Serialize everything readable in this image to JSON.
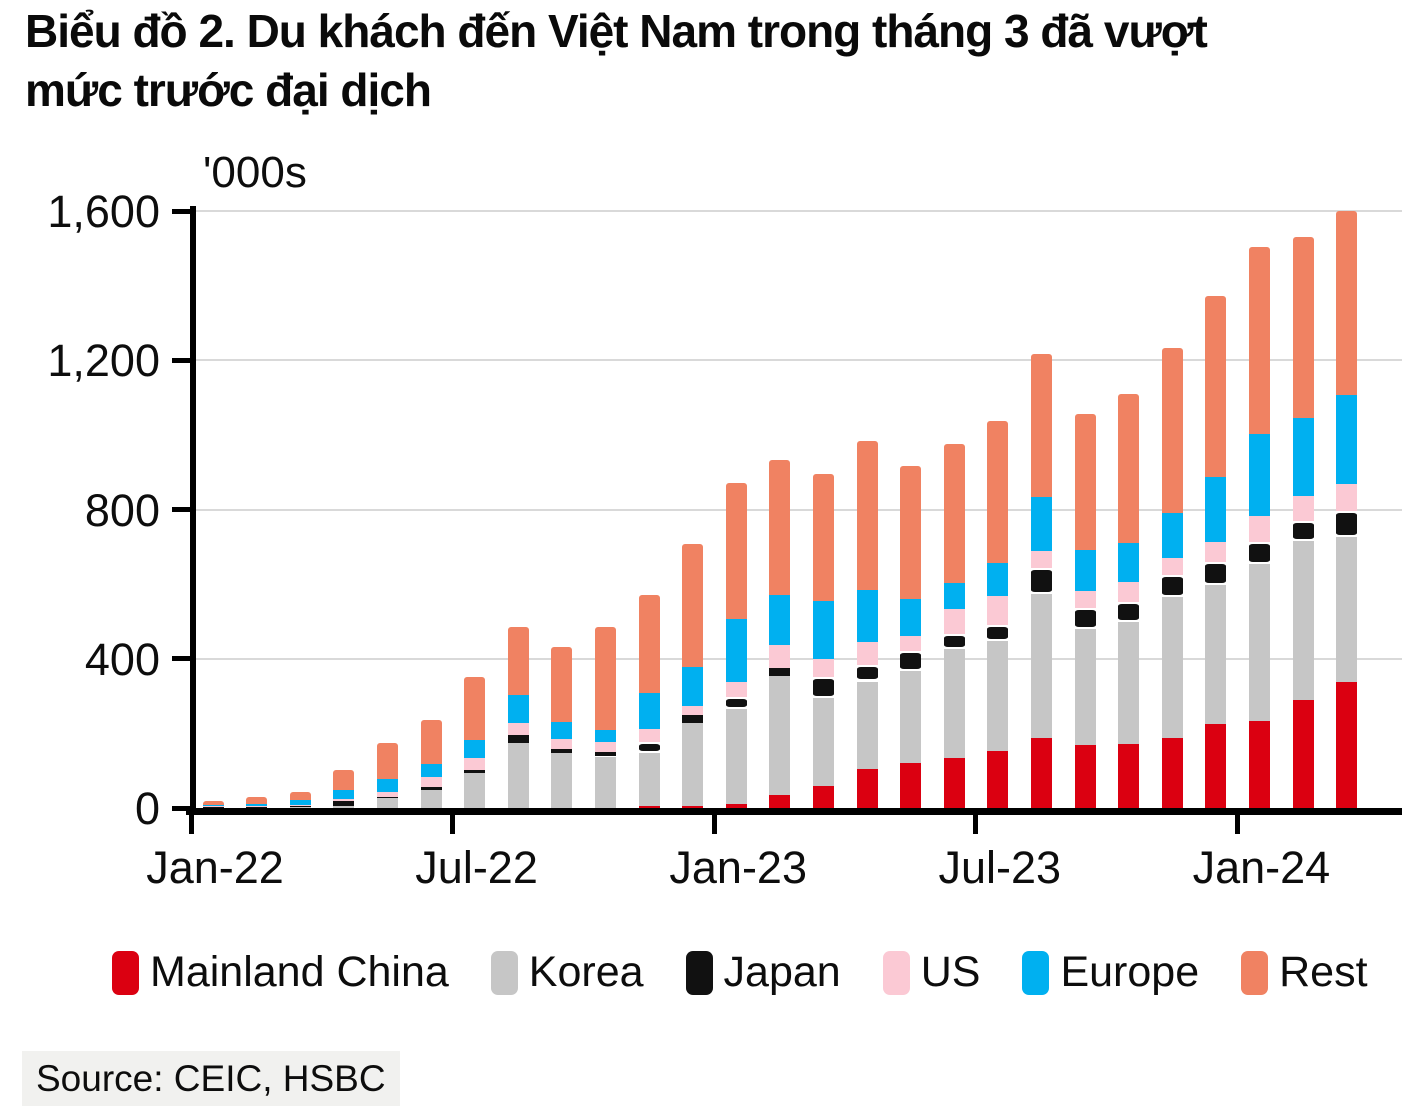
{
  "title": {
    "line1": "Biểu đồ 2. Du khách đến Việt Nam trong tháng 3 đã vượt",
    "line2": "mức trước đại dịch"
  },
  "chart": {
    "unit_label": "'000s"
  },
  "source": "Source: CEIC, HSBC",
  "colors": {
    "grid": "#d9d9d9",
    "axis": "#000000",
    "source_background": "#f1f1ef"
  },
  "chart_data": {
    "type": "bar",
    "stacked": true,
    "title": "Du khách đến Việt Nam (visitor arrivals to Vietnam)",
    "unit": "thousands of visitors per month",
    "ylabel": "'000s",
    "xlabel": "",
    "ylim": [
      0,
      1600
    ],
    "y_ticks": [
      0,
      400,
      800,
      1200,
      1600
    ],
    "y_tick_labels": [
      "0",
      "400",
      "800",
      "1,200",
      "1,600"
    ],
    "x_tick_labels": [
      "Jan-22",
      "Jul-22",
      "Jan-23",
      "Jul-23",
      "Jan-24"
    ],
    "grid": "horizontal",
    "legend_position": "bottom",
    "categories": [
      "Jan-22",
      "Feb-22",
      "Mar-22",
      "Apr-22",
      "May-22",
      "Jun-22",
      "Jul-22",
      "Aug-22",
      "Sep-22",
      "Oct-22",
      "Nov-22",
      "Dec-22",
      "Jan-23",
      "Feb-23",
      "Mar-23",
      "Apr-23",
      "May-23",
      "Jun-23",
      "Jul-23",
      "Aug-23",
      "Sep-23",
      "Oct-23",
      "Nov-23",
      "Dec-23",
      "Jan-24",
      "Feb-24",
      "Mar-24"
    ],
    "totals": [
      20,
      30,
      42,
      101,
      173,
      237,
      352,
      486,
      432,
      484,
      570,
      707,
      871,
      933,
      895,
      984,
      916,
      975,
      1038,
      1217,
      1055,
      1110,
      1232,
      1373,
      1504,
      1530,
      1600
    ],
    "series": [
      {
        "key": "china",
        "name": "Mainland China",
        "color": "#db0011",
        "values": [
          0,
          0,
          0,
          0,
          0,
          0,
          0,
          0,
          0,
          0,
          5,
          5,
          10,
          35,
          60,
          105,
          121,
          134,
          154,
          187,
          168,
          172,
          187,
          225,
          232,
          289,
          339
        ]
      },
      {
        "key": "korea",
        "name": "Korea",
        "color": "#c6c6c6",
        "values": [
          2,
          2,
          3,
          6,
          27,
          49,
          94,
          174,
          147,
          138,
          142,
          224,
          256,
          320,
          236,
          234,
          247,
          293,
          294,
          386,
          311,
          327,
          379,
          373,
          421,
          427,
          386
        ]
      },
      {
        "key": "japan",
        "name": "Japan",
        "color": "#111111",
        "values": [
          1,
          1,
          2,
          12,
          3,
          6,
          7,
          22,
          11,
          11,
          30,
          20,
          31,
          20,
          55,
          43,
          54,
          40,
          42,
          69,
          58,
          54,
          58,
          62,
          60,
          53,
          70
        ]
      },
      {
        "key": "us",
        "name": "US",
        "color": "#fbc9d4",
        "values": [
          2,
          3,
          4,
          6,
          13,
          29,
          34,
          31,
          27,
          29,
          35,
          25,
          40,
          62,
          47,
          64,
          40,
          67,
          77,
          47,
          45,
          52,
          47,
          53,
          69,
          67,
          73
        ]
      },
      {
        "key": "europe",
        "name": "Europe",
        "color": "#00b0f0",
        "values": [
          2,
          5,
          13,
          25,
          36,
          33,
          48,
          76,
          45,
          30,
          95,
          104,
          169,
          133,
          156,
          138,
          98,
          70,
          89,
          145,
          109,
          105,
          119,
          175,
          220,
          210,
          240
        ]
      },
      {
        "key": "rest",
        "name": "Rest",
        "color": "#f08262",
        "values": [
          13,
          19,
          20,
          52,
          94,
          120,
          169,
          183,
          202,
          276,
          263,
          329,
          365,
          363,
          341,
          400,
          356,
          371,
          382,
          383,
          364,
          400,
          442,
          485,
          502,
          484,
          492
        ]
      }
    ]
  }
}
